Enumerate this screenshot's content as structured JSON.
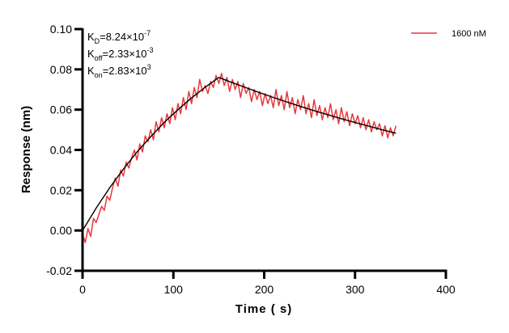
{
  "chart_data": {
    "type": "line",
    "xlabel": "Time ( s)",
    "ylabel": "Response (nm)",
    "xlim": [
      0,
      400
    ],
    "ylim": [
      -0.02,
      0.1
    ],
    "xticks": [
      "0",
      "100",
      "200",
      "300",
      "400"
    ],
    "yticks": [
      "-0.02",
      "0.00",
      "0.02",
      "0.04",
      "0.06",
      "0.08",
      "0.10"
    ],
    "grid": false,
    "legend_placement": "top-right",
    "annotations": [
      {
        "sym": "K",
        "sub": "D",
        "eq": "=8.24×10",
        "sup": "-7"
      },
      {
        "sym": "K",
        "sub": "off",
        "eq": "=2.33×10",
        "sup": "-3"
      },
      {
        "sym": "K",
        "sub": "on",
        "eq": "=2.83×10",
        "sup": "3"
      }
    ],
    "series": [
      {
        "name": "1600 nM",
        "color": "#e8383d",
        "x": [
          0,
          3,
          6,
          9,
          12,
          15,
          18,
          21,
          24,
          27,
          30,
          33,
          36,
          39,
          42,
          45,
          48,
          51,
          54,
          57,
          60,
          63,
          66,
          69,
          72,
          75,
          78,
          81,
          84,
          87,
          90,
          93,
          96,
          99,
          102,
          105,
          108,
          111,
          114,
          117,
          120,
          123,
          126,
          129,
          132,
          135,
          138,
          141,
          144,
          147,
          150,
          153,
          156,
          159,
          162,
          165,
          168,
          171,
          174,
          177,
          180,
          183,
          186,
          189,
          192,
          195,
          198,
          201,
          204,
          207,
          210,
          213,
          216,
          219,
          222,
          225,
          228,
          231,
          234,
          237,
          240,
          243,
          246,
          249,
          252,
          255,
          258,
          261,
          264,
          267,
          270,
          273,
          276,
          279,
          282,
          285,
          288,
          291,
          294,
          297,
          300,
          303,
          306,
          309,
          312,
          315,
          318,
          321,
          324,
          327,
          330,
          333,
          336,
          339,
          342,
          345
        ],
        "y": [
          -0.002,
          -0.006,
          0.001,
          -0.003,
          0.006,
          0.004,
          0.008,
          0.012,
          0.01,
          0.017,
          0.015,
          0.021,
          0.026,
          0.022,
          0.03,
          0.027,
          0.034,
          0.031,
          0.036,
          0.04,
          0.035,
          0.043,
          0.039,
          0.047,
          0.044,
          0.05,
          0.045,
          0.054,
          0.049,
          0.056,
          0.051,
          0.058,
          0.053,
          0.061,
          0.055,
          0.063,
          0.058,
          0.066,
          0.06,
          0.069,
          0.063,
          0.071,
          0.066,
          0.075,
          0.069,
          0.072,
          0.068,
          0.074,
          0.071,
          0.077,
          0.073,
          0.078,
          0.072,
          0.076,
          0.069,
          0.075,
          0.07,
          0.074,
          0.066,
          0.073,
          0.068,
          0.071,
          0.064,
          0.07,
          0.065,
          0.069,
          0.062,
          0.068,
          0.063,
          0.067,
          0.061,
          0.07,
          0.062,
          0.067,
          0.06,
          0.069,
          0.061,
          0.066,
          0.058,
          0.065,
          0.06,
          0.067,
          0.058,
          0.063,
          0.056,
          0.065,
          0.057,
          0.062,
          0.055,
          0.061,
          0.056,
          0.063,
          0.055,
          0.06,
          0.053,
          0.061,
          0.054,
          0.059,
          0.052,
          0.058,
          0.053,
          0.057,
          0.051,
          0.056,
          0.05,
          0.055,
          0.049,
          0.054,
          0.05,
          0.053,
          0.047,
          0.052,
          0.046,
          0.051,
          0.047,
          0.052
        ]
      },
      {
        "color": "#000000",
        "x": [
          0,
          15,
          30,
          45,
          60,
          75,
          90,
          105,
          120,
          135,
          150,
          165,
          180,
          195,
          210,
          225,
          240,
          255,
          270,
          285,
          300,
          315,
          330,
          345
        ],
        "y": [
          0,
          0.0111,
          0.0213,
          0.0305,
          0.039,
          0.0466,
          0.0537,
          0.06,
          0.0658,
          0.0711,
          0.076,
          0.0734,
          0.0709,
          0.0684,
          0.0661,
          0.0638,
          0.0616,
          0.0595,
          0.0575,
          0.0555,
          0.0536,
          0.0518,
          0.05,
          0.0483
        ]
      }
    ]
  }
}
